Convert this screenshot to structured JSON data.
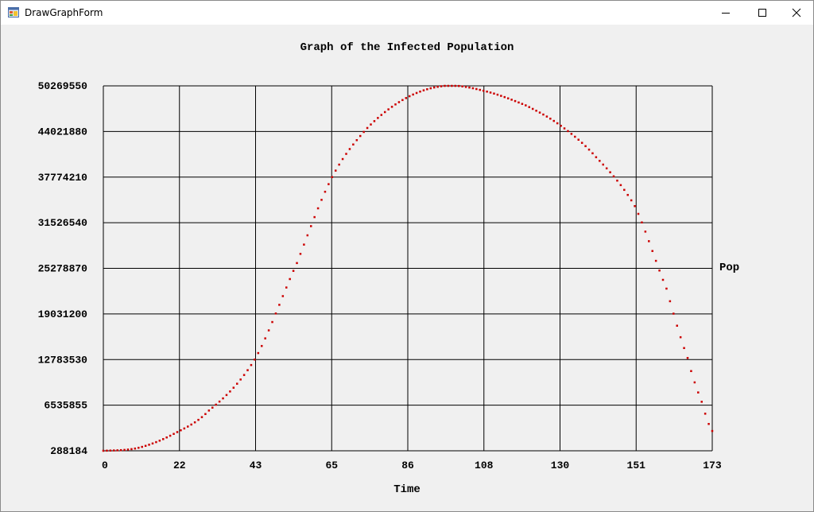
{
  "window": {
    "title": "DrawGraphForm"
  },
  "chart_data": {
    "type": "scatter",
    "title": "Graph of the Infected Population",
    "xlabel": "Time",
    "ylabel": "Pop",
    "x_ticks": [
      "0",
      "22",
      "43",
      "65",
      "86",
      "108",
      "130",
      "151",
      "173"
    ],
    "y_ticks": [
      "288184",
      "6535855",
      "12783530",
      "19031200",
      "25278870",
      "31526540",
      "37774210",
      "44021880",
      "50269550"
    ],
    "xlim": [
      0,
      173
    ],
    "ylim": [
      288184,
      50269550
    ],
    "grid": true,
    "point_color": "#cc0000",
    "key_points": [
      [
        0,
        288184
      ],
      [
        10,
        700000
      ],
      [
        20,
        2600000
      ],
      [
        30,
        5800000
      ],
      [
        43,
        12783530
      ],
      [
        55,
        26000000
      ],
      [
        65,
        37774210
      ],
      [
        75,
        44500000
      ],
      [
        86,
        48600000
      ],
      [
        97,
        50269550
      ],
      [
        108,
        49600000
      ],
      [
        120,
        47600000
      ],
      [
        130,
        44800000
      ],
      [
        140,
        40500000
      ],
      [
        151,
        33800000
      ],
      [
        160,
        22500000
      ],
      [
        166,
        13000000
      ],
      [
        170,
        7000000
      ],
      [
        173,
        3000000
      ]
    ]
  }
}
